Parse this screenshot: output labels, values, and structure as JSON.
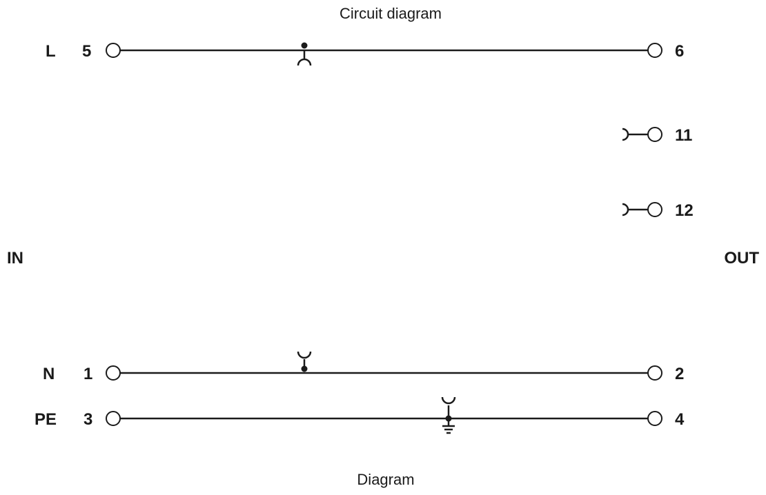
{
  "title": "Circuit diagram",
  "footer": "Diagram",
  "side_labels": {
    "in": "IN",
    "out": "OUT"
  },
  "lines": [
    {
      "name": "L",
      "in_terminal": "5",
      "out_terminal": "6"
    },
    {
      "name": "N",
      "in_terminal": "1",
      "out_terminal": "2"
    },
    {
      "name": "PE",
      "in_terminal": "3",
      "out_terminal": "4"
    }
  ],
  "aux_terminals": [
    "11",
    "12"
  ],
  "colors": {
    "ink": "#1a1a1a",
    "background": "#ffffff"
  }
}
